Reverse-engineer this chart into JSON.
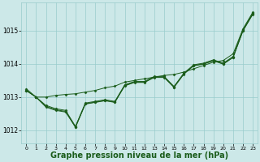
{
  "background_color": "#cce8e8",
  "grid_color": "#99cccc",
  "line_color": "#1a5c1a",
  "xlabel": "Graphe pression niveau de la mer (hPa)",
  "xlabel_fontsize": 7,
  "ylabel_ticks": [
    1012,
    1013,
    1014,
    1015
  ],
  "xticks": [
    0,
    1,
    2,
    3,
    4,
    5,
    6,
    7,
    8,
    9,
    10,
    11,
    12,
    13,
    14,
    15,
    16,
    17,
    18,
    19,
    20,
    21,
    22,
    23
  ],
  "xlim": [
    -0.5,
    23.5
  ],
  "ylim": [
    1011.6,
    1015.85
  ],
  "series": [
    [
      1013.2,
      1013.0,
      1012.7,
      1012.6,
      1012.55,
      1012.1,
      1012.8,
      1012.85,
      1012.9,
      1012.85,
      1013.35,
      1013.45,
      1013.45,
      1013.6,
      1013.6,
      1013.3,
      1013.7,
      1013.95,
      1014.0,
      1014.1,
      1014.0,
      1014.2,
      1015.0,
      1015.5
    ],
    [
      1013.2,
      1013.0,
      1012.75,
      1012.65,
      1012.6,
      1012.12,
      1012.82,
      1012.87,
      1012.92,
      1012.87,
      1013.37,
      1013.47,
      1013.47,
      1013.62,
      1013.62,
      1013.32,
      1013.72,
      1013.97,
      1014.02,
      1014.12,
      1014.02,
      1014.22,
      1015.02,
      1015.52
    ],
    [
      1013.2,
      1013.0,
      1012.72,
      1012.62,
      1012.57,
      1012.09,
      1012.79,
      1012.84,
      1012.89,
      1012.84,
      1013.34,
      1013.44,
      1013.44,
      1013.59,
      1013.59,
      1013.29,
      1013.69,
      1013.94,
      1013.99,
      1014.09,
      1013.99,
      1014.19,
      1014.99,
      1015.49
    ],
    [
      1013.25,
      1013.0,
      1013.0,
      1013.05,
      1013.08,
      1013.1,
      1013.15,
      1013.2,
      1013.28,
      1013.33,
      1013.45,
      1013.5,
      1013.55,
      1013.6,
      1013.65,
      1013.68,
      1013.75,
      1013.85,
      1013.95,
      1014.05,
      1014.1,
      1014.3,
      1015.05,
      1015.55
    ]
  ]
}
